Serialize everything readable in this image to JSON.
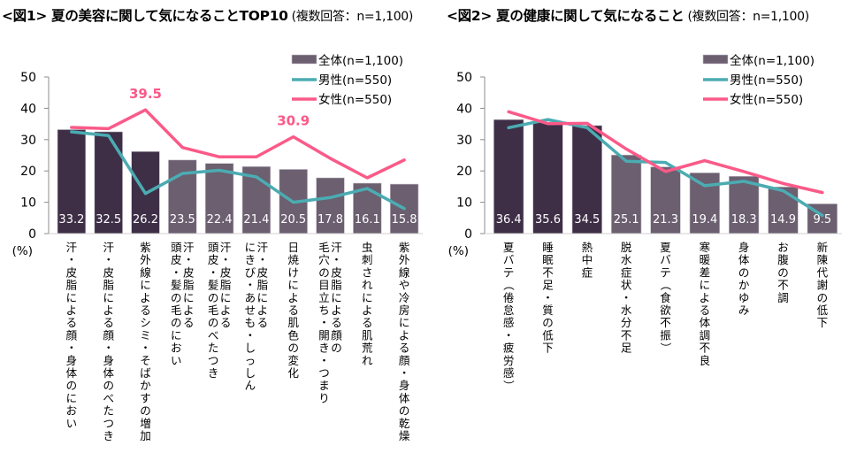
{
  "chart_data": [
    {
      "type": "bar",
      "id": "fig1",
      "title": "<図1> 夏の美容に関して気になることTOP10",
      "subtitle": "(複数回答：n=1,100)",
      "xlabel": "",
      "ylabel": "(%)",
      "ylim": [
        0,
        50
      ],
      "yticks": [
        0,
        10,
        20,
        30,
        40,
        50
      ],
      "grid": false,
      "legend_position": "top-right",
      "categories": [
        [
          "汗・皮脂による顔・身体のにおい"
        ],
        [
          "汗・皮脂による顔・身体のべたつき"
        ],
        [
          "紫外線によるシミ・そばかすの増加"
        ],
        [
          "汗・皮脂による",
          "頭皮・髪の毛のにおい"
        ],
        [
          "汗・皮脂による",
          "頭皮・髪の毛のべたつき"
        ],
        [
          "汗・皮脂による",
          "にきび・あせも・しっしん"
        ],
        [
          "日焼けによる肌色の変化"
        ],
        [
          "汗・皮脂による顔の",
          "毛穴の目立ち・開き・つまり"
        ],
        [
          "虫刺されによる肌荒れ"
        ],
        [
          "紫外線や冷房による顔・身体の乾燥"
        ]
      ],
      "series": [
        {
          "name": "全体(n=1,100)",
          "kind": "bar",
          "values": [
            33.2,
            32.5,
            26.2,
            23.5,
            22.4,
            21.4,
            20.5,
            17.8,
            16.1,
            15.8
          ],
          "highlight_count": 3
        },
        {
          "name": "男性(n=550)",
          "kind": "line",
          "values": [
            32.5,
            31.3,
            12.8,
            19.2,
            20.2,
            18.1,
            10.0,
            11.5,
            14.4,
            8.0
          ]
        },
        {
          "name": "女性(n=550)",
          "kind": "line",
          "values": [
            33.9,
            33.5,
            39.5,
            27.5,
            24.5,
            24.5,
            30.9,
            24.0,
            17.8,
            23.5
          ]
        }
      ],
      "annotations": [
        {
          "series": "女性(n=550)",
          "index": 2,
          "text": "39.5"
        },
        {
          "series": "女性(n=550)",
          "index": 6,
          "text": "30.9"
        }
      ]
    },
    {
      "type": "bar",
      "id": "fig2",
      "title": "<図2> 夏の健康に関して気になること",
      "subtitle": "(複数回答：n=1,100)",
      "xlabel": "",
      "ylabel": "(%)",
      "ylim": [
        0,
        50
      ],
      "yticks": [
        0,
        10,
        20,
        30,
        40,
        50
      ],
      "grid": false,
      "legend_position": "top-right",
      "categories": [
        [
          "夏バテ（倦怠感・疲労感）"
        ],
        [
          "睡眠不足・質の低下"
        ],
        [
          "熱中症"
        ],
        [
          "脱水症状・水分不足"
        ],
        [
          "夏バテ（食欲不振）"
        ],
        [
          "寒暖差による体調不良"
        ],
        [
          "身体のかゆみ"
        ],
        [
          "お腹の不調"
        ],
        [
          "新陳代謝の低下"
        ]
      ],
      "series": [
        {
          "name": "全体(n=1,100)",
          "kind": "bar",
          "values": [
            36.4,
            35.6,
            34.5,
            25.1,
            21.3,
            19.4,
            18.3,
            14.9,
            9.5
          ],
          "highlight_count": 3
        },
        {
          "name": "男性(n=550)",
          "kind": "line",
          "values": [
            33.8,
            36.4,
            33.8,
            23.1,
            22.7,
            15.3,
            16.7,
            13.7,
            5.8
          ]
        },
        {
          "name": "女性(n=550)",
          "kind": "line",
          "values": [
            38.9,
            35.1,
            35.2,
            27.0,
            19.8,
            23.3,
            19.8,
            16.0,
            13.1
          ]
        }
      ],
      "annotations": []
    }
  ],
  "colors": {
    "bar_highlight": "#3e2f47",
    "bar_normal": "#6b5f70",
    "bar_border": "#c9c3cc",
    "male_line": "#4bacb2",
    "female_line": "#fa5a88",
    "axis": "#8c8c8c"
  },
  "titles": {
    "fig1_main": "<図1> 夏の美容に関して気になることTOP10",
    "fig1_sub": "(複数回答：n=1,100)",
    "fig2_main": "<図2> 夏の健康に関して気になること",
    "fig2_sub": "(複数回答：n=1,100)"
  }
}
